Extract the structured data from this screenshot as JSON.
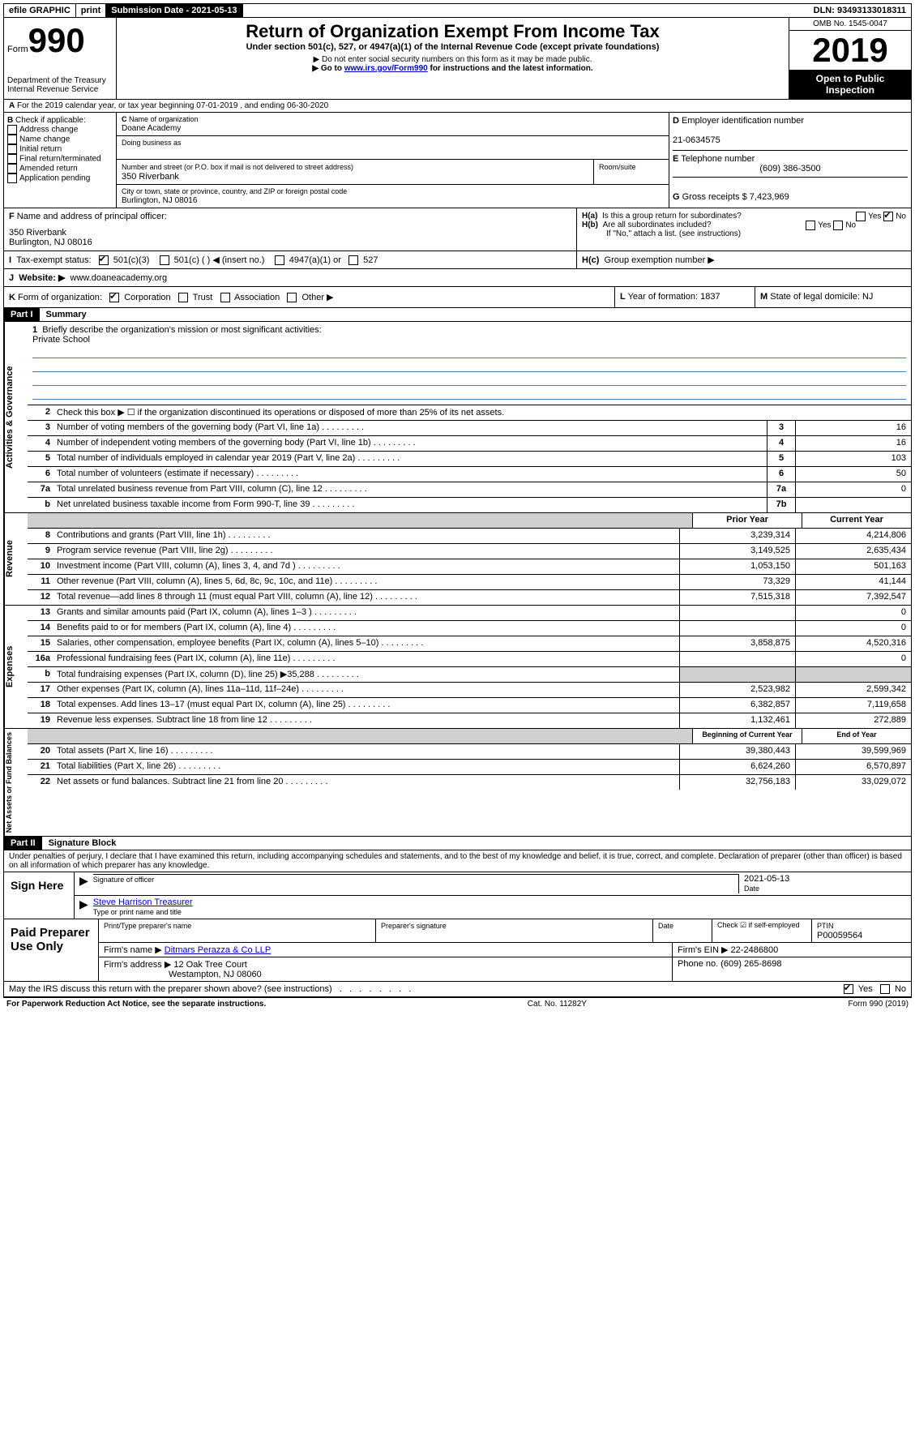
{
  "topbar": {
    "efile": "efile GRAPHIC",
    "print": "print",
    "submission": "Submission Date - 2021-05-13",
    "dln": "DLN: 93493133018311"
  },
  "header": {
    "form_label": "Form",
    "form_number": "990",
    "dept": "Department of the Treasury",
    "irs": "Internal Revenue Service",
    "title": "Return of Organization Exempt From Income Tax",
    "subtitle": "Under section 501(c), 527, or 4947(a)(1) of the Internal Revenue Code (except private foundations)",
    "note1": "▶ Do not enter social security numbers on this form as it may be made public.",
    "note2_pre": "▶ Go to ",
    "note2_link": "www.irs.gov/Form990",
    "note2_post": " for instructions and the latest information.",
    "omb": "OMB No. 1545-0047",
    "year": "2019",
    "inspection": "Open to Public Inspection"
  },
  "lineA": "For the 2019 calendar year, or tax year beginning 07-01-2019    , and ending 06-30-2020",
  "boxB": {
    "label": "Check if applicable:",
    "opts": [
      "Address change",
      "Name change",
      "Initial return",
      "Final return/terminated",
      "Amended return",
      "Application pending"
    ]
  },
  "boxC": {
    "name_label": "Name of organization",
    "name": "Doane Academy",
    "dba_label": "Doing business as",
    "street_label": "Number and street (or P.O. box if mail is not delivered to street address)",
    "street": "350 Riverbank",
    "room_label": "Room/suite",
    "city_label": "City or town, state or province, country, and ZIP or foreign postal code",
    "city": "Burlington, NJ  08016"
  },
  "boxD": {
    "label": "Employer identification number",
    "value": "21-0634575"
  },
  "boxE": {
    "label": "Telephone number",
    "value": "(609) 386-3500"
  },
  "boxG": {
    "label": "Gross receipts $",
    "value": "7,423,969"
  },
  "boxF": {
    "label": "Name and address of principal officer:",
    "line1": "350 Riverbank",
    "line2": "Burlington, NJ  08016"
  },
  "boxH": {
    "a": "Is this a group return for subordinates?",
    "b": "Are all subordinates included?",
    "b_note": "If \"No,\" attach a list. (see instructions)",
    "c": "Group exemption number ▶"
  },
  "boxI": {
    "label": "Tax-exempt status:",
    "opt1": "501(c)(3)",
    "opt2": "501(c) (   ) ◀ (insert no.)",
    "opt3": "4947(a)(1) or",
    "opt4": "527"
  },
  "boxJ": {
    "label": "Website: ▶",
    "value": "www.doaneacademy.org"
  },
  "boxK": {
    "label": "Form of organization:",
    "opts": [
      "Corporation",
      "Trust",
      "Association",
      "Other ▶"
    ]
  },
  "boxL": {
    "label": "Year of formation:",
    "value": "1837"
  },
  "boxM": {
    "label": "State of legal domicile:",
    "value": "NJ"
  },
  "part1": {
    "header": "Part I",
    "title": "Summary",
    "line1_label": "Briefly describe the organization's mission or most significant activities:",
    "line1_value": "Private School",
    "line2": "Check this box ▶ ☐  if the organization discontinued its operations or disposed of more than 25% of its net assets.",
    "lines_gov": [
      {
        "num": "3",
        "desc": "Number of voting members of the governing body (Part VI, line 1a)",
        "box": "3",
        "val": "16"
      },
      {
        "num": "4",
        "desc": "Number of independent voting members of the governing body (Part VI, line 1b)",
        "box": "4",
        "val": "16"
      },
      {
        "num": "5",
        "desc": "Total number of individuals employed in calendar year 2019 (Part V, line 2a)",
        "box": "5",
        "val": "103"
      },
      {
        "num": "6",
        "desc": "Total number of volunteers (estimate if necessary)",
        "box": "6",
        "val": "50"
      },
      {
        "num": "7a",
        "desc": "Total unrelated business revenue from Part VIII, column (C), line 12",
        "box": "7a",
        "val": "0"
      },
      {
        "num": "b",
        "desc": "Net unrelated business taxable income from Form 990-T, line 39",
        "box": "7b",
        "val": ""
      }
    ],
    "col_headers": {
      "prior": "Prior Year",
      "current": "Current Year"
    },
    "revenue": [
      {
        "num": "8",
        "desc": "Contributions and grants (Part VIII, line 1h)",
        "prior": "3,239,314",
        "current": "4,214,806"
      },
      {
        "num": "9",
        "desc": "Program service revenue (Part VIII, line 2g)",
        "prior": "3,149,525",
        "current": "2,635,434"
      },
      {
        "num": "10",
        "desc": "Investment income (Part VIII, column (A), lines 3, 4, and 7d )",
        "prior": "1,053,150",
        "current": "501,163"
      },
      {
        "num": "11",
        "desc": "Other revenue (Part VIII, column (A), lines 5, 6d, 8c, 9c, 10c, and 11e)",
        "prior": "73,329",
        "current": "41,144"
      },
      {
        "num": "12",
        "desc": "Total revenue—add lines 8 through 11 (must equal Part VIII, column (A), line 12)",
        "prior": "7,515,318",
        "current": "7,392,547"
      }
    ],
    "expenses": [
      {
        "num": "13",
        "desc": "Grants and similar amounts paid (Part IX, column (A), lines 1–3 )",
        "prior": "",
        "current": "0"
      },
      {
        "num": "14",
        "desc": "Benefits paid to or for members (Part IX, column (A), line 4)",
        "prior": "",
        "current": "0"
      },
      {
        "num": "15",
        "desc": "Salaries, other compensation, employee benefits (Part IX, column (A), lines 5–10)",
        "prior": "3,858,875",
        "current": "4,520,316"
      },
      {
        "num": "16a",
        "desc": "Professional fundraising fees (Part IX, column (A), line 11e)",
        "prior": "",
        "current": "0"
      },
      {
        "num": "b",
        "desc": "Total fundraising expenses (Part IX, column (D), line 25) ▶35,288",
        "prior": "shaded",
        "current": "shaded"
      },
      {
        "num": "17",
        "desc": "Other expenses (Part IX, column (A), lines 11a–11d, 11f–24e)",
        "prior": "2,523,982",
        "current": "2,599,342"
      },
      {
        "num": "18",
        "desc": "Total expenses. Add lines 13–17 (must equal Part IX, column (A), line 25)",
        "prior": "6,382,857",
        "current": "7,119,658"
      },
      {
        "num": "19",
        "desc": "Revenue less expenses. Subtract line 18 from line 12",
        "prior": "1,132,461",
        "current": "272,889"
      }
    ],
    "col_headers2": {
      "begin": "Beginning of Current Year",
      "end": "End of Year"
    },
    "netassets": [
      {
        "num": "20",
        "desc": "Total assets (Part X, line 16)",
        "prior": "39,380,443",
        "current": "39,599,969"
      },
      {
        "num": "21",
        "desc": "Total liabilities (Part X, line 26)",
        "prior": "6,624,260",
        "current": "6,570,897"
      },
      {
        "num": "22",
        "desc": "Net assets or fund balances. Subtract line 21 from line 20",
        "prior": "32,756,183",
        "current": "33,029,072"
      }
    ],
    "side_labels": {
      "gov": "Activities & Governance",
      "rev": "Revenue",
      "exp": "Expenses",
      "net": "Net Assets or Fund Balances"
    }
  },
  "part2": {
    "header": "Part II",
    "title": "Signature Block",
    "penalty": "Under penalties of perjury, I declare that I have examined this return, including accompanying schedules and statements, and to the best of my knowledge and belief, it is true, correct, and complete. Declaration of preparer (other than officer) is based on all information of which preparer has any knowledge.",
    "sign_here": "Sign Here",
    "sig_officer": "Signature of officer",
    "date": "2021-05-13",
    "date_label": "Date",
    "officer_name": "Steve Harrison Treasurer",
    "type_name": "Type or print name and title",
    "paid": "Paid Preparer Use Only",
    "prep_name_label": "Print/Type preparer's name",
    "prep_sig_label": "Preparer's signature",
    "prep_date_label": "Date",
    "check_self": "Check ☑ if self-employed",
    "ptin_label": "PTIN",
    "ptin": "P00059564",
    "firm_name_label": "Firm's name      ▶",
    "firm_name": "Ditmars Perazza & Co LLP",
    "firm_ein_label": "Firm's EIN ▶",
    "firm_ein": "22-2486800",
    "firm_addr_label": "Firm's address ▶",
    "firm_addr1": "12 Oak Tree Court",
    "firm_addr2": "Westampton, NJ  08060",
    "phone_label": "Phone no.",
    "phone": "(609) 265-8698",
    "may_irs": "May the IRS discuss this return with the preparer shown above? (see instructions)",
    "yes": "Yes",
    "no": "No"
  },
  "footer": {
    "paperwork": "For Paperwork Reduction Act Notice, see the separate instructions.",
    "cat": "Cat. No. 11282Y",
    "form": "Form 990 (2019)"
  }
}
